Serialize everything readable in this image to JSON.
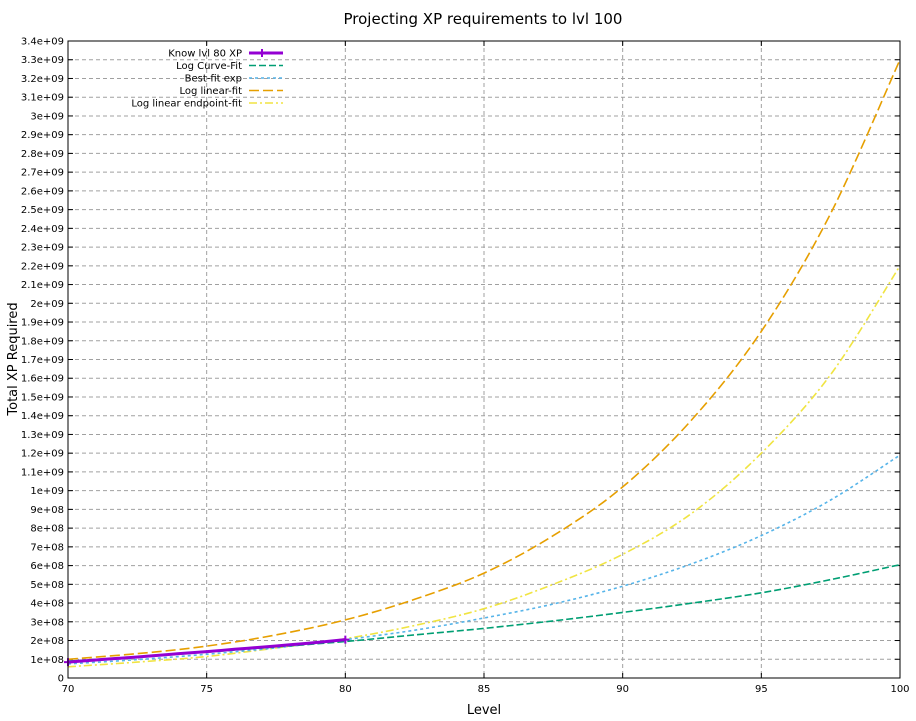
{
  "chart_data": {
    "type": "line",
    "title": "Projecting XP requirements to lvl 100",
    "xlabel": "Level",
    "ylabel": "Total XP Required",
    "xlim": [
      70,
      100
    ],
    "ylim": [
      0,
      3400000000
    ],
    "grid": true,
    "legend_placement": "top-left",
    "x_ticks": [
      70,
      75,
      80,
      85,
      90,
      95,
      100
    ],
    "y_ticks": [
      "0",
      "1e+08",
      "2e+08",
      "3e+08",
      "4e+08",
      "5e+08",
      "6e+08",
      "7e+08",
      "8e+08",
      "9e+08",
      "1e+09",
      "1.1e+09",
      "1.2e+09",
      "1.3e+09",
      "1.4e+09",
      "1.5e+09",
      "1.6e+09",
      "1.7e+09",
      "1.8e+09",
      "1.9e+09",
      "2e+09",
      "2.1e+09",
      "2.2e+09",
      "2.3e+09",
      "2.4e+09",
      "2.5e+09",
      "2.6e+09",
      "2.7e+09",
      "2.8e+09",
      "2.9e+09",
      "3e+09",
      "3.1e+09",
      "3.2e+09",
      "3.3e+09",
      "3.4e+09"
    ],
    "series": [
      {
        "name": "Know lvl 80 XP",
        "color": "#9400d3",
        "style": "solid-thick-points",
        "x": [
          70,
          71,
          72,
          73,
          74,
          75,
          76,
          77,
          78,
          79,
          80
        ],
        "y": [
          85000000,
          96000000,
          107000000,
          118000000,
          130000000,
          141000000,
          153000000,
          165000000,
          177000000,
          190000000,
          205000000
        ]
      },
      {
        "name": "Log Curve-Fit",
        "color": "#009e73",
        "style": "dash",
        "x": [
          70,
          72.5,
          75,
          77.5,
          80,
          82.5,
          85,
          87.5,
          90,
          92.5,
          95,
          97.5,
          100
        ],
        "y": [
          90000000,
          113000000,
          138000000,
          166000000,
          195000000,
          230000000,
          265000000,
          305000000,
          350000000,
          400000000,
          455000000,
          525000000,
          605000000
        ]
      },
      {
        "name": "Best-fit exp",
        "color": "#56b4e9",
        "style": "dot",
        "x": [
          70,
          72.5,
          75,
          77.5,
          80,
          82.5,
          85,
          87.5,
          90,
          92.5,
          95,
          97.5,
          100
        ],
        "y": [
          75000000,
          98000000,
          127000000,
          161000000,
          205000000,
          255000000,
          320000000,
          395000000,
          490000000,
          610000000,
          760000000,
          950000000,
          1190000000
        ]
      },
      {
        "name": "Log linear-fit",
        "color": "#e69f00",
        "style": "dash-long",
        "x": [
          70,
          72.5,
          75,
          77.5,
          80,
          82.5,
          85,
          87.5,
          90,
          92.5,
          95,
          97.5,
          100
        ],
        "y": [
          100000000,
          130000000,
          170000000,
          230000000,
          310000000,
          420000000,
          560000000,
          760000000,
          1020000000,
          1380000000,
          1850000000,
          2480000000,
          3300000000
        ]
      },
      {
        "name": "Log linear endpoint-fit",
        "color": "#f0e442",
        "style": "dash-dot",
        "x": [
          70,
          72.5,
          75,
          77.5,
          80,
          82.5,
          85,
          87.5,
          90,
          92.5,
          95,
          97.5,
          100
        ],
        "y": [
          60000000,
          85000000,
          115000000,
          160000000,
          210000000,
          280000000,
          370000000,
          500000000,
          660000000,
          880000000,
          1200000000,
          1620000000,
          2200000000
        ]
      }
    ]
  }
}
